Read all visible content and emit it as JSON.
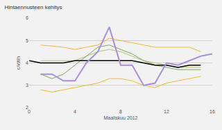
{
  "chart_data": {
    "type": "line",
    "title": "Hintaennusteen kehitys",
    "x_label": "Maaliskuu 2012",
    "y_label": "c/kWh",
    "x": [
      0,
      1,
      2,
      3,
      4,
      5,
      6,
      7,
      8,
      9,
      10,
      11,
      12,
      13,
      14,
      15,
      16
    ],
    "series": [
      {
        "color": "#f5b82e",
        "values": [
          null,
          4.8,
          4.75,
          4.7,
          4.6,
          4.7,
          4.8,
          5.1,
          5.0,
          4.9,
          4.8,
          4.7,
          4.7,
          4.7,
          4.7,
          4.5,
          null
        ]
      },
      {
        "color": "#f5b82e",
        "values": [
          null,
          2.8,
          2.7,
          2.8,
          2.9,
          3.0,
          3.1,
          3.3,
          3.3,
          3.2,
          3.0,
          2.9,
          3.1,
          3.2,
          3.3,
          3.4,
          null
        ]
      },
      {
        "color": "#b5c46a",
        "values": [
          null,
          4.1,
          4.1,
          4.1,
          4.1,
          4.3,
          4.5,
          4.6,
          4.5,
          4.3,
          4.1,
          4.0,
          3.9,
          3.8,
          3.8,
          3.8,
          null
        ]
      },
      {
        "color": "#7aa86a",
        "values": [
          null,
          3.5,
          3.3,
          3.5,
          3.9,
          4.3,
          4.7,
          4.8,
          4.6,
          4.4,
          4.1,
          3.9,
          3.8,
          3.7,
          3.7,
          3.7,
          null
        ]
      },
      {
        "color": "#000000",
        "values": [
          4.1,
          4.0,
          4.0,
          4.0,
          4.1,
          4.1,
          4.1,
          4.1,
          4.1,
          4.1,
          4.0,
          3.9,
          3.9,
          3.8,
          3.9,
          3.9,
          null
        ]
      },
      {
        "color": "#a98fd6",
        "values": [
          null,
          3.5,
          3.5,
          3.2,
          3.2,
          4.0,
          4.5,
          5.6,
          3.9,
          3.9,
          3.0,
          3.1,
          4.0,
          3.9,
          4.1,
          4.3,
          4.4
        ]
      }
    ],
    "xlim": [
      0,
      16
    ],
    "xticks": [
      0,
      4,
      8,
      12,
      16
    ],
    "ylim": [
      2,
      6
    ],
    "yticks": [
      2,
      3,
      4,
      5,
      6
    ],
    "grid": true
  }
}
